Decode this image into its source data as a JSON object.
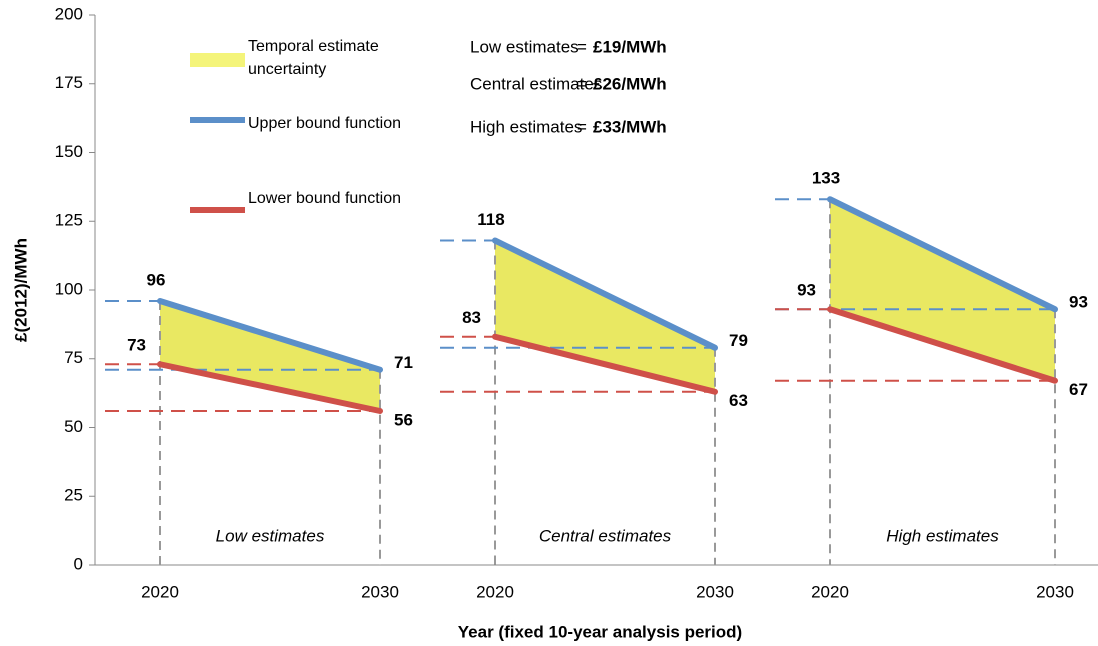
{
  "chart_data": {
    "type": "range",
    "ylabel": "£(2012)/MWh",
    "xlabel": "Year (fixed 10-year analysis period)",
    "ylim": [
      0,
      200
    ],
    "yticks": [
      0,
      25,
      50,
      75,
      100,
      125,
      150,
      175,
      200
    ],
    "upper_color": "#5b8fc9",
    "lower_color": "#cf5049",
    "fill_color": "#e9e862",
    "panels": [
      {
        "name": "Low estimates",
        "x": [
          "2020",
          "2030"
        ],
        "upper": [
          96,
          71
        ],
        "lower": [
          73,
          56
        ]
      },
      {
        "name": "Central estimates",
        "x": [
          "2020",
          "2030"
        ],
        "upper": [
          118,
          79
        ],
        "lower": [
          83,
          63
        ]
      },
      {
        "name": "High estimates",
        "x": [
          "2020",
          "2030"
        ],
        "upper": [
          133,
          93
        ],
        "lower": [
          93,
          67
        ]
      }
    ],
    "legend": [
      {
        "name": "Temporal estimate uncertainty",
        "color": "#f4f47a"
      },
      {
        "name": "Upper bound function",
        "color": "#5b8fc9"
      },
      {
        "name": "Lower bound function",
        "color": "#cf5049"
      }
    ],
    "summary": [
      {
        "label": "Low estimates",
        "sign": "=",
        "value": "£19/MWh"
      },
      {
        "label": "Central estimates",
        "sign": "=",
        "value": "£26/MWh"
      },
      {
        "label": "High estimates",
        "sign": "=",
        "value": "£33/MWh"
      }
    ]
  }
}
